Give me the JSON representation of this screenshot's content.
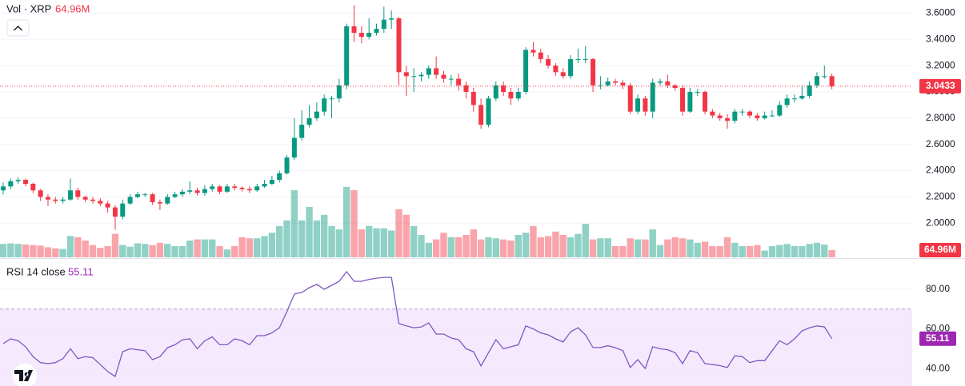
{
  "chart_data": {
    "type": "candlestick",
    "title": "Vol · XRP",
    "ylim": [
      1.74,
      3.7
    ],
    "yticks": [
      {
        "value": 3.6,
        "label": "3.6000"
      },
      {
        "value": 3.4,
        "label": "3.4000"
      },
      {
        "value": 3.2,
        "label": "3.2000"
      },
      {
        "value": 3.0,
        "label": "3.0000"
      },
      {
        "value": 2.8,
        "label": "2.8000"
      },
      {
        "value": 2.6,
        "label": "2.6000"
      },
      {
        "value": 2.4,
        "label": "2.4000"
      },
      {
        "value": 2.2,
        "label": "2.2000"
      },
      {
        "value": 2.0,
        "label": "2.0000"
      }
    ],
    "grid": true,
    "up_color": "#089981",
    "down_color": "#f23645",
    "open": [
      2.25,
      2.28,
      2.32,
      2.33,
      2.3,
      2.25,
      2.2,
      2.18,
      2.17,
      2.18,
      2.25,
      2.2,
      2.18,
      2.17,
      2.15,
      2.12,
      2.05,
      2.15,
      2.2,
      2.22,
      2.22,
      2.16,
      2.15,
      2.2,
      2.22,
      2.24,
      2.25,
      2.23,
      2.26,
      2.28,
      2.24,
      2.28,
      2.27,
      2.26,
      2.25,
      2.28,
      2.3,
      2.33,
      2.38,
      2.5,
      2.65,
      2.75,
      2.8,
      2.85,
      2.95,
      2.95,
      3.05,
      3.5,
      3.45,
      3.42,
      3.45,
      3.48,
      3.55,
      3.56,
      3.15,
      3.12,
      3.12,
      3.13,
      3.18,
      3.13,
      3.1,
      3.1,
      3.05,
      3.0,
      2.9,
      2.75,
      2.95,
      3.05,
      3.0,
      2.95,
      3.0,
      3.32,
      3.3,
      3.25,
      3.2,
      3.15,
      3.12,
      3.25,
      3.25,
      3.25,
      3.05,
      3.05,
      3.08,
      3.07,
      3.05,
      2.85,
      2.95,
      2.85,
      3.07,
      3.08,
      3.05,
      3.03,
      2.85,
      3.0,
      3.0,
      2.85,
      2.82,
      2.8,
      2.78,
      2.85,
      2.85,
      2.82,
      2.8,
      2.82,
      2.82,
      2.9,
      2.95,
      2.95,
      2.97,
      3.05,
      3.12,
      3.12
    ],
    "high": [
      2.31,
      2.34,
      2.35,
      2.34,
      2.31,
      2.26,
      2.22,
      2.2,
      2.2,
      2.34,
      2.27,
      2.21,
      2.2,
      2.19,
      2.17,
      2.14,
      2.18,
      2.22,
      2.24,
      2.23,
      2.23,
      2.18,
      2.22,
      2.24,
      2.26,
      2.32,
      2.27,
      2.29,
      2.3,
      2.29,
      2.3,
      2.3,
      2.28,
      2.28,
      2.3,
      2.33,
      2.36,
      2.4,
      2.52,
      2.8,
      2.86,
      2.9,
      2.92,
      2.98,
      2.97,
      3.1,
      3.52,
      3.66,
      3.5,
      3.56,
      3.52,
      3.65,
      3.62,
      3.57,
      3.2,
      3.18,
      3.15,
      3.2,
      3.27,
      3.16,
      3.13,
      3.14,
      3.08,
      3.03,
      2.95,
      2.97,
      3.08,
      3.08,
      3.03,
      3.03,
      3.34,
      3.38,
      3.33,
      3.28,
      3.22,
      3.18,
      3.28,
      3.33,
      3.35,
      3.26,
      3.12,
      3.11,
      3.1,
      3.09,
      3.07,
      2.98,
      2.97,
      3.1,
      3.1,
      3.13,
      3.06,
      3.05,
      3.03,
      3.02,
      3.01,
      2.87,
      2.84,
      2.83,
      2.87,
      2.87,
      2.86,
      2.84,
      2.85,
      2.86,
      2.93,
      2.98,
      2.98,
      3.05,
      3.08,
      3.15,
      3.2,
      3.14
    ],
    "low": [
      2.22,
      2.26,
      2.3,
      2.28,
      2.23,
      2.17,
      2.13,
      2.15,
      2.15,
      2.17,
      2.18,
      2.16,
      2.15,
      2.13,
      2.08,
      1.95,
      2.03,
      2.14,
      2.19,
      2.2,
      2.14,
      2.1,
      2.14,
      2.19,
      2.2,
      2.22,
      2.21,
      2.21,
      2.24,
      2.22,
      2.23,
      2.25,
      2.24,
      2.23,
      2.24,
      2.27,
      2.29,
      2.31,
      2.37,
      2.48,
      2.63,
      2.73,
      2.78,
      2.82,
      2.8,
      2.92,
      3.02,
      3.38,
      3.37,
      3.4,
      3.43,
      3.45,
      3.48,
      3.05,
      2.97,
      3.0,
      3.08,
      3.1,
      3.1,
      3.07,
      3.05,
      3.01,
      2.95,
      2.85,
      2.72,
      2.73,
      2.93,
      2.97,
      2.9,
      2.93,
      2.98,
      3.27,
      3.22,
      3.18,
      3.12,
      3.1,
      3.1,
      3.22,
      3.22,
      3.0,
      3.02,
      3.04,
      3.05,
      3.02,
      2.83,
      2.83,
      2.82,
      2.8,
      3.05,
      3.03,
      3.01,
      2.82,
      2.84,
      2.97,
      2.83,
      2.8,
      2.78,
      2.72,
      2.76,
      2.82,
      2.8,
      2.78,
      2.79,
      2.81,
      2.81,
      2.88,
      2.92,
      2.94,
      2.95,
      3.03,
      3.1,
      3.02
    ],
    "close": [
      2.28,
      2.32,
      2.33,
      2.3,
      2.25,
      2.2,
      2.18,
      2.17,
      2.18,
      2.25,
      2.2,
      2.18,
      2.17,
      2.15,
      2.12,
      2.05,
      2.15,
      2.2,
      2.22,
      2.22,
      2.16,
      2.15,
      2.2,
      2.22,
      2.24,
      2.25,
      2.23,
      2.26,
      2.28,
      2.24,
      2.28,
      2.27,
      2.26,
      2.25,
      2.28,
      2.3,
      2.33,
      2.38,
      2.5,
      2.65,
      2.75,
      2.8,
      2.85,
      2.95,
      2.95,
      3.05,
      3.5,
      3.45,
      3.42,
      3.45,
      3.48,
      3.55,
      3.56,
      3.15,
      3.12,
      3.12,
      3.13,
      3.18,
      3.13,
      3.1,
      3.1,
      3.05,
      3.0,
      2.9,
      2.75,
      2.95,
      3.05,
      3.0,
      2.95,
      3.0,
      3.32,
      3.3,
      3.25,
      3.2,
      3.15,
      3.12,
      3.25,
      3.25,
      3.25,
      3.05,
      3.05,
      3.08,
      3.07,
      3.05,
      2.85,
      2.95,
      2.85,
      3.07,
      3.08,
      3.05,
      3.03,
      2.85,
      3.0,
      3.0,
      2.85,
      2.82,
      2.8,
      2.78,
      2.85,
      2.85,
      2.82,
      2.8,
      2.82,
      2.82,
      2.9,
      2.95,
      2.95,
      2.97,
      3.05,
      3.12,
      3.12,
      3.0433
    ],
    "last_price": 3.0433,
    "volume": {
      "ylim": [
        0,
        2300
      ],
      "last_label": "64.96M",
      "values": [
        120,
        125,
        120,
        115,
        110,
        105,
        90,
        80,
        75,
        190,
        180,
        150,
        110,
        85,
        100,
        210,
        110,
        95,
        125,
        120,
        110,
        130,
        120,
        100,
        100,
        150,
        160,
        160,
        160,
        100,
        70,
        100,
        180,
        170,
        170,
        190,
        220,
        280,
        330,
        600,
        330,
        450,
        330,
        380,
        280,
        250,
        630,
        600,
        250,
        280,
        260,
        260,
        240,
        430,
        380,
        280,
        200,
        130,
        160,
        220,
        180,
        180,
        200,
        250,
        160,
        180,
        170,
        160,
        150,
        200,
        220,
        280,
        180,
        190,
        230,
        200,
        180,
        210,
        300,
        160,
        170,
        170,
        100,
        100,
        170,
        160,
        160,
        250,
        110,
        160,
        180,
        170,
        160,
        130,
        140,
        100,
        100,
        180,
        130,
        100,
        100,
        110,
        60,
        100,
        110,
        120,
        100,
        100,
        120,
        130,
        115,
        64.96
      ]
    },
    "rsi": {
      "title": "RSI 14 close",
      "color": "#7e57c2",
      "ylim": [
        31.2,
        94.9
      ],
      "band": [
        30,
        70
      ],
      "yticks": [
        {
          "value": 80,
          "label": "80.00"
        },
        {
          "value": 60,
          "label": "60.00"
        },
        {
          "value": 40,
          "label": "40.00"
        }
      ],
      "values": [
        52.6,
        55,
        54,
        51,
        46,
        43,
        42.5,
        43,
        45,
        50,
        45,
        46,
        45.5,
        42,
        38.5,
        36,
        48.5,
        50,
        49.5,
        49,
        44.5,
        46,
        50.5,
        52,
        54.5,
        55,
        50,
        54,
        56,
        52,
        52,
        55,
        54,
        52,
        56.6,
        56.6,
        58,
        60.6,
        68.7,
        77.6,
        78.4,
        80.8,
        82.5,
        80,
        82,
        84,
        88.9,
        84,
        84,
        85,
        85.6,
        86,
        86,
        62.7,
        61.5,
        60.6,
        61,
        63,
        57.4,
        57.4,
        55.4,
        54.6,
        50,
        48.5,
        41.3,
        48,
        54.6,
        50,
        51,
        52,
        61.5,
        60,
        58,
        57,
        55,
        53.4,
        58.5,
        60.6,
        57,
        50.6,
        50.6,
        51.5,
        50.5,
        49,
        40.5,
        44.5,
        40,
        51,
        50,
        49.5,
        48,
        42.5,
        49,
        48,
        42.5,
        42,
        41.5,
        40.5,
        46.5,
        46,
        43,
        44,
        44,
        49,
        54,
        52,
        55,
        59,
        60.6,
        61.5,
        61,
        55.11
      ]
    }
  }
}
